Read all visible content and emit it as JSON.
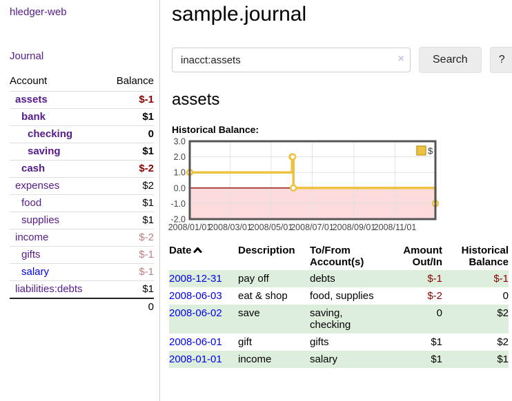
{
  "app": {
    "title": "hledger-web"
  },
  "sidebar": {
    "journal_link": "Journal",
    "table": {
      "headers": [
        "Account",
        "Balance"
      ],
      "accounts": [
        {
          "name": "assets",
          "balance": "$-1",
          "depth": 1,
          "bold": true,
          "neg": "strong",
          "link": "purple"
        },
        {
          "name": "bank",
          "balance": "$1",
          "depth": 2,
          "bold": true,
          "neg": "none",
          "link": "purple"
        },
        {
          "name": "checking",
          "balance": "0",
          "depth": 3,
          "bold": true,
          "neg": "none",
          "link": "purple"
        },
        {
          "name": "saving",
          "balance": "$1",
          "depth": 3,
          "bold": true,
          "neg": "none",
          "link": "purple"
        },
        {
          "name": "cash",
          "balance": "$-2",
          "depth": 2,
          "bold": true,
          "neg": "strong",
          "link": "purple"
        },
        {
          "name": "expenses",
          "balance": "$2",
          "depth": 1,
          "bold": false,
          "neg": "none",
          "link": "purple"
        },
        {
          "name": "food",
          "balance": "$1",
          "depth": 2,
          "bold": false,
          "neg": "none",
          "link": "purple"
        },
        {
          "name": "supplies",
          "balance": "$1",
          "depth": 2,
          "bold": false,
          "neg": "none",
          "link": "purple"
        },
        {
          "name": "income",
          "balance": "$-2",
          "depth": 1,
          "bold": false,
          "neg": "faded",
          "link": "purple"
        },
        {
          "name": "gifts",
          "balance": "$-1",
          "depth": 2,
          "bold": false,
          "neg": "faded",
          "link": "purple"
        },
        {
          "name": "salary",
          "balance": "$-1",
          "depth": 2,
          "bold": false,
          "neg": "faded",
          "link": "blue"
        },
        {
          "name": "liabilities:debts",
          "balance": "$1",
          "depth": 1,
          "bold": false,
          "neg": "none",
          "link": "purple"
        }
      ],
      "total": "0"
    }
  },
  "header": {
    "title": "sample.journal"
  },
  "search": {
    "value": "inacct:assets",
    "clear_icon": "×",
    "button": "Search",
    "help_button": "?"
  },
  "account_page": {
    "title": "assets",
    "chart_label": "Historical Balance:"
  },
  "chart_data": {
    "type": "line",
    "title": "Historical Balance",
    "step": true,
    "series": [
      {
        "name": "$",
        "points": [
          [
            "2008-01-01",
            1
          ],
          [
            "2008-06-01",
            2
          ],
          [
            "2008-06-02",
            2
          ],
          [
            "2008-06-03",
            0
          ],
          [
            "2008-12-31",
            -1
          ]
        ]
      }
    ],
    "x_ticks": [
      "2008/01/01",
      "2008/03/01",
      "2008/05/01",
      "2008/07/01",
      "2008/09/01",
      "2008/11/01"
    ],
    "y_ticks": [
      -2.0,
      -1.0,
      0.0,
      1.0,
      2.0,
      3.0
    ],
    "xlim": [
      "2008-01-01",
      "2008-12-31"
    ],
    "ylim": [
      -2,
      3
    ],
    "grid": true,
    "legend": {
      "label": "$",
      "position": "top-right"
    },
    "series_color": "#edc240",
    "negative_region_color": "#fbdbdb",
    "zero_line_color": "#8b0000",
    "border_color": "#545454"
  },
  "register": {
    "headers": {
      "date": "Date",
      "description": "Description",
      "accounts": "To/From Account(s)",
      "amount": "Amount Out/In",
      "balance": "Historical Balance"
    },
    "rows": [
      {
        "date": "2008-12-31",
        "description": "pay off",
        "accounts": "debts",
        "amount": "$-1",
        "amount_neg": true,
        "balance": "$-1",
        "balance_neg": true
      },
      {
        "date": "2008-06-03",
        "description": "eat & shop",
        "accounts": "food, supplies",
        "amount": "$-2",
        "amount_neg": true,
        "balance": "0",
        "balance_neg": false
      },
      {
        "date": "2008-06-02",
        "description": "save",
        "accounts": "saving, checking",
        "amount": "0",
        "amount_neg": false,
        "balance": "$2",
        "balance_neg": false
      },
      {
        "date": "2008-06-01",
        "description": "gift",
        "accounts": "gifts",
        "amount": "$1",
        "amount_neg": false,
        "balance": "$2",
        "balance_neg": false
      },
      {
        "date": "2008-01-01",
        "description": "income",
        "accounts": "salary",
        "amount": "$1",
        "amount_neg": false,
        "balance": "$1",
        "balance_neg": false
      }
    ]
  },
  "colors": {
    "link_purple": "#551a8b",
    "link_blue": "#0000ee",
    "negative_strong": "#8b0000",
    "negative_faded": "#bd7f7f",
    "row_stripe_green": "#ddeedd",
    "chart_gold": "#edc240",
    "chart_negative_pink": "#fbdbdb",
    "button_gray": "#ececec"
  }
}
